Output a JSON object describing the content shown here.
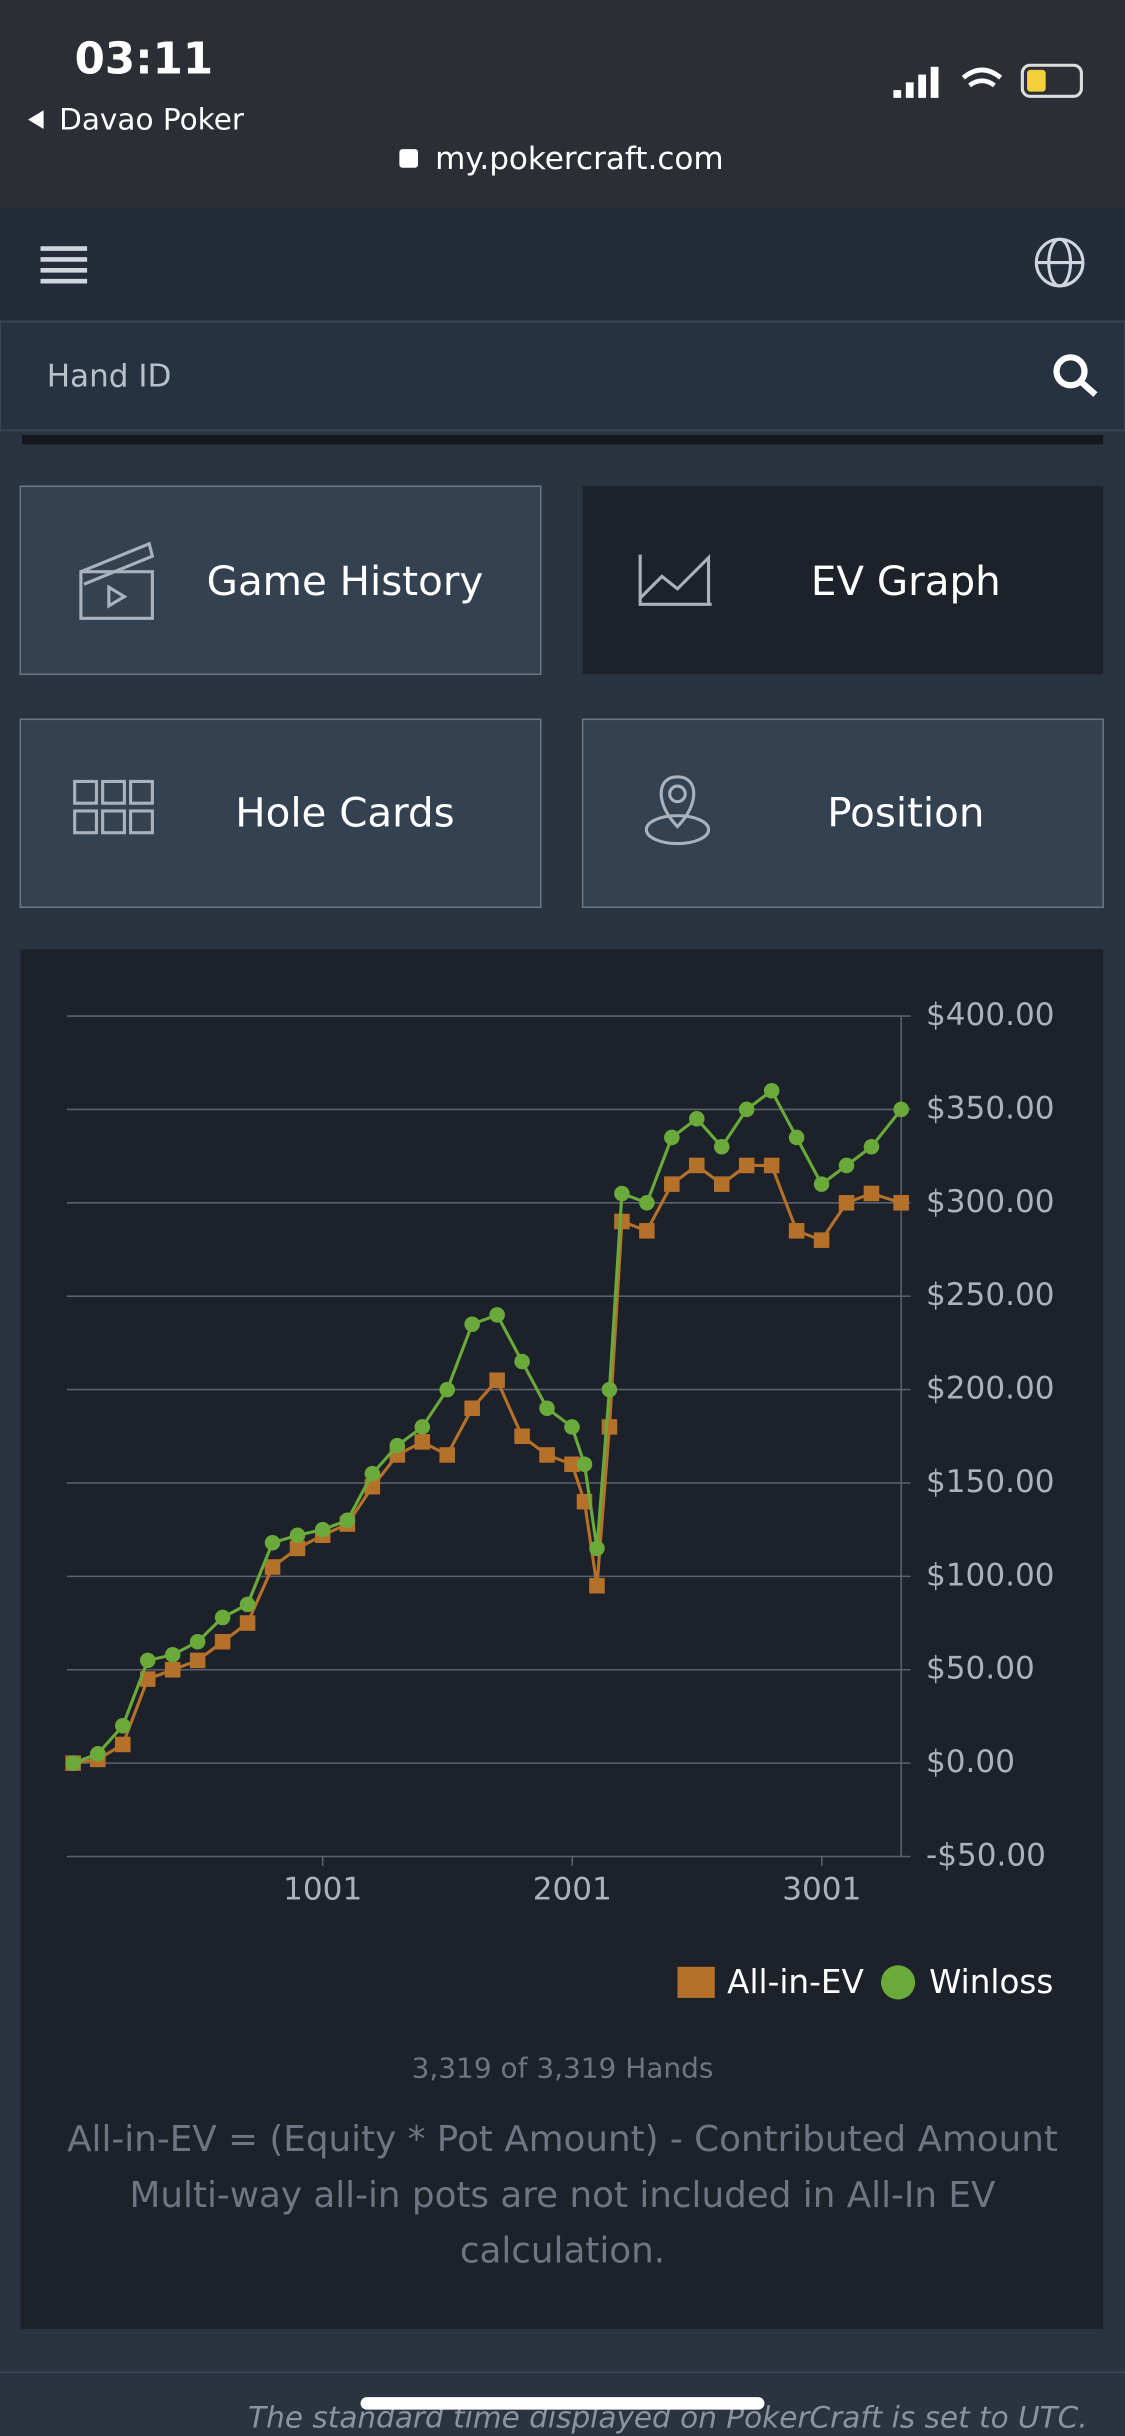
{
  "status_bar": {
    "time": "03:11",
    "back": "Davao Poker",
    "url": "my.pokercraft.com"
  },
  "search": {
    "placeholder": "Hand ID"
  },
  "tiles": [
    "Game History",
    "EV Graph",
    "Hole Cards",
    "Position"
  ],
  "chart_data": {
    "type": "line",
    "x": [
      1,
      100,
      200,
      300,
      400,
      500,
      600,
      700,
      800,
      900,
      1001,
      1100,
      1200,
      1300,
      1400,
      1500,
      1600,
      1700,
      1800,
      1900,
      2000,
      2050,
      2100,
      2150,
      2200,
      2300,
      2400,
      2500,
      2600,
      2700,
      2800,
      2900,
      3000,
      3100,
      3200,
      3319
    ],
    "series": [
      {
        "name": "All-in-EV",
        "color": "#b5712a",
        "marker": "square",
        "values": [
          0,
          2,
          10,
          45,
          50,
          55,
          65,
          75,
          105,
          115,
          122,
          128,
          148,
          165,
          172,
          165,
          190,
          205,
          175,
          165,
          160,
          140,
          95,
          180,
          290,
          285,
          310,
          320,
          310,
          320,
          320,
          285,
          280,
          300,
          305,
          300
        ]
      },
      {
        "name": "Winloss",
        "color": "#6aaa3a",
        "marker": "circle",
        "values": [
          0,
          5,
          20,
          55,
          58,
          65,
          78,
          85,
          118,
          122,
          125,
          130,
          155,
          170,
          180,
          200,
          235,
          240,
          215,
          190,
          180,
          160,
          115,
          200,
          305,
          300,
          335,
          345,
          330,
          350,
          360,
          335,
          310,
          320,
          330,
          350
        ]
      }
    ],
    "xlim": [
      1,
      3319
    ],
    "xticks": [
      1001,
      2001,
      3001
    ],
    "ylim": [
      -50,
      400
    ],
    "yticks": [
      {
        "value": -50,
        "label": "-$50.00"
      },
      {
        "value": 0,
        "label": "$0.00"
      },
      {
        "value": 50,
        "label": "$50.00"
      },
      {
        "value": 100,
        "label": "$100.00"
      },
      {
        "value": 150,
        "label": "$150.00"
      },
      {
        "value": 200,
        "label": "$200.00"
      },
      {
        "value": 250,
        "label": "$250.00"
      },
      {
        "value": 300,
        "label": "$300.00"
      },
      {
        "value": 350,
        "label": "$350.00"
      },
      {
        "value": 400,
        "label": "$400.00"
      }
    ],
    "grid": true
  },
  "hands": "3,319 of 3,319 Hands",
  "notes": [
    "All-in-EV = (Equity * Pot Amount) - Contributed Amount",
    "Multi-way all-in pots are not included in All-In EV",
    "calculation."
  ],
  "footer": "The standard time displayed on PokerCraft is set to UTC."
}
